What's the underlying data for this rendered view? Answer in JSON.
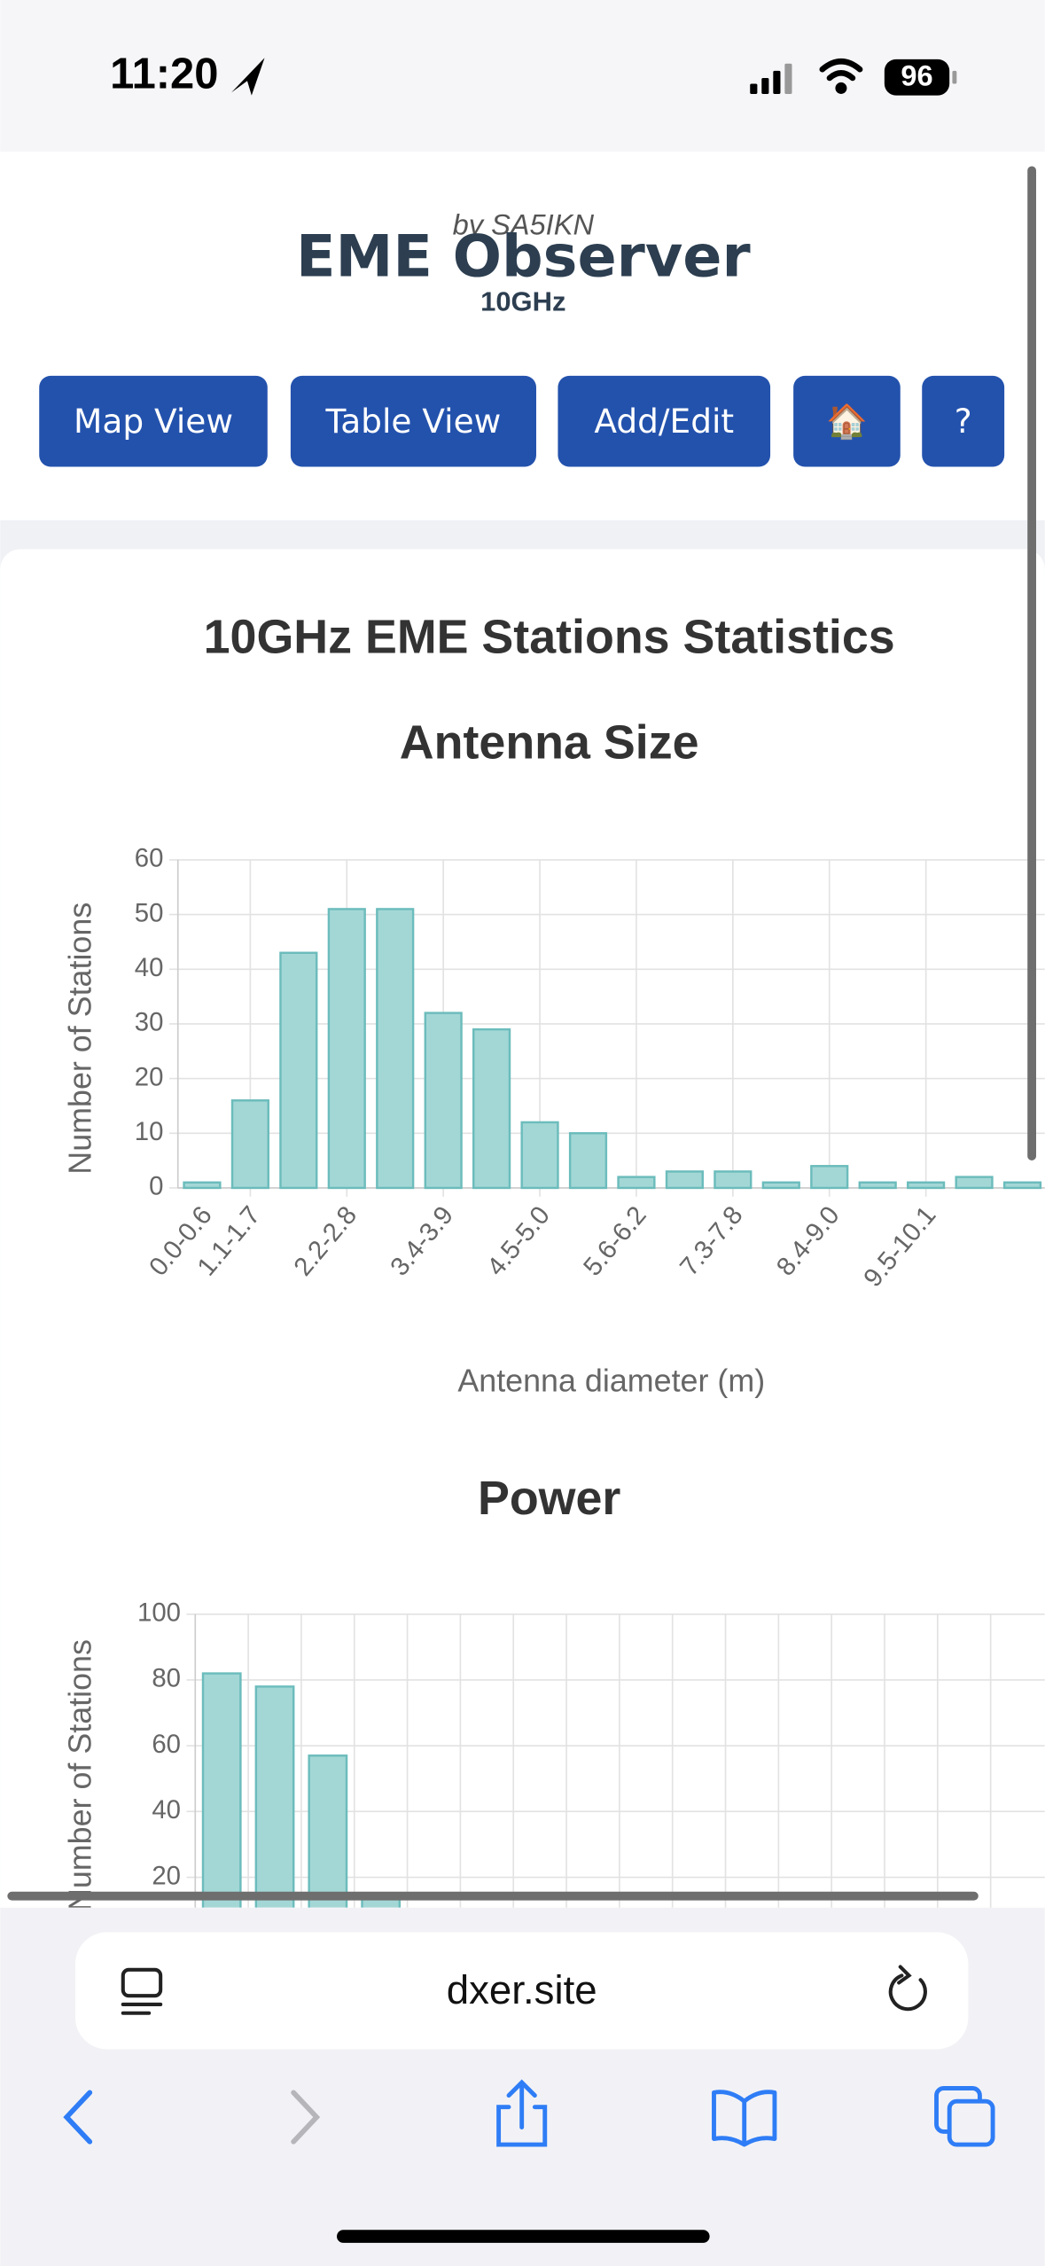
{
  "status_bar": {
    "time": "11:20",
    "battery": "96"
  },
  "header": {
    "byline": "by SA5IKN",
    "title": "EME Observer",
    "band": "10GHz"
  },
  "nav": {
    "buttons": [
      "Map View",
      "Table View",
      "Add/Edit",
      "🏠",
      "?"
    ]
  },
  "page_title": "10GHz EME Stations Statistics",
  "chart_data": [
    {
      "type": "bar",
      "title": "Antenna Size",
      "categories": [
        "0.0-0.6",
        "1.1-1.7",
        null,
        "2.2-2.8",
        null,
        "3.4-3.9",
        null,
        "4.5-5.0",
        null,
        "5.6-6.2",
        null,
        "7.3-7.8",
        null,
        "8.4-9.0",
        null,
        "9.5-10.1",
        null,
        null
      ],
      "values": [
        1,
        16,
        43,
        51,
        51,
        32,
        29,
        12,
        10,
        2,
        3,
        3,
        1,
        4,
        1,
        1,
        2,
        1
      ],
      "color": "#a3d7d6",
      "border_color": "#6cbcbc",
      "ylim": [
        0,
        60
      ],
      "yticks": [
        0,
        10,
        20,
        30,
        40,
        50,
        60
      ],
      "grid": true,
      "y_label": "Number of Stations",
      "x_label": "Antenna diameter (m)"
    },
    {
      "type": "bar",
      "title": "Power",
      "values": [
        82,
        78,
        57,
        14
      ],
      "color": "#a3d7d6",
      "border_color": "#6cbcbc",
      "ylim": [
        0,
        100
      ],
      "yticks": [
        20,
        40,
        60,
        80,
        100
      ],
      "grid": true,
      "y_label": "Number of Stations"
    }
  ],
  "browser": {
    "url": "dxer.site"
  }
}
